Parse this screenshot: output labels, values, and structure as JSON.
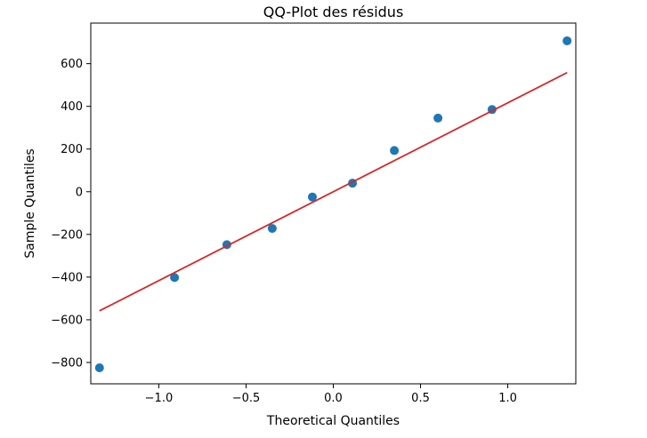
{
  "chart_data": {
    "type": "scatter",
    "title": "QQ-Plot des résidus",
    "xlabel": "Theoretical Quantiles",
    "ylabel": "Sample Quantiles",
    "xlim": [
      -1.39,
      1.39
    ],
    "ylim": [
      -900,
      790
    ],
    "x_ticks": [
      -1.0,
      -0.5,
      0.0,
      0.5,
      1.0
    ],
    "x_tick_labels": [
      "−1.0",
      "−0.5",
      "0.0",
      "0.5",
      "1.0"
    ],
    "y_ticks": [
      -800,
      -600,
      -400,
      -200,
      0,
      200,
      400,
      600
    ],
    "y_tick_labels": [
      "−800",
      "−600",
      "−400",
      "−200",
      "0",
      "200",
      "400",
      "600"
    ],
    "grid": false,
    "series": [
      {
        "type": "scatter",
        "color": "#1f77b4",
        "points": [
          {
            "x": -1.34,
            "y": -825
          },
          {
            "x": -0.91,
            "y": -402
          },
          {
            "x": -0.61,
            "y": -248
          },
          {
            "x": -0.35,
            "y": -172
          },
          {
            "x": -0.12,
            "y": -25
          },
          {
            "x": 0.11,
            "y": 40
          },
          {
            "x": 0.35,
            "y": 193
          },
          {
            "x": 0.6,
            "y": 345
          },
          {
            "x": 0.91,
            "y": 385
          },
          {
            "x": 1.34,
            "y": 707
          }
        ]
      },
      {
        "type": "line",
        "color": "#d62728",
        "points": [
          {
            "x": -1.34,
            "y": -558
          },
          {
            "x": 1.34,
            "y": 558
          }
        ]
      }
    ]
  }
}
